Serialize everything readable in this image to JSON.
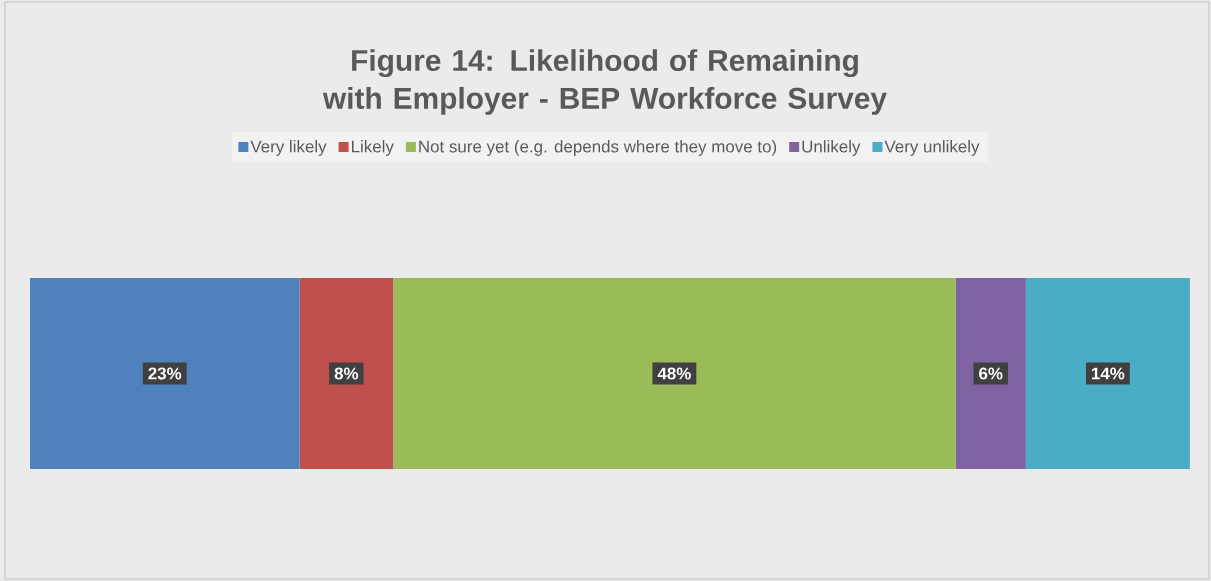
{
  "chart_data": {
    "type": "bar",
    "title": "Figure 14: Likelihood of Remaining with Employer - BEP Workforce Survey",
    "categories": [
      null
    ],
    "orientation": "horizontal",
    "stacked": true,
    "legend": "top",
    "series": [
      {
        "name": "Very likely",
        "color": "#4f81bd",
        "values": [
          23
        ],
        "value_labels": [
          "23%"
        ]
      },
      {
        "name": "Likely",
        "color": "#c0504d",
        "values": [
          8
        ],
        "value_labels": [
          "8%"
        ]
      },
      {
        "name": "Not sure yet (e.g. depends where they move to)",
        "color": "#9bbb59",
        "values": [
          48
        ],
        "value_labels": [
          "48%"
        ]
      },
      {
        "name": "Unlikely",
        "color": "#8064a2",
        "values": [
          6
        ],
        "value_labels": [
          "6%"
        ]
      },
      {
        "name": "Very unlikely",
        "color": "#4bacc6",
        "values": [
          14
        ],
        "value_labels": [
          "14%"
        ]
      }
    ]
  }
}
